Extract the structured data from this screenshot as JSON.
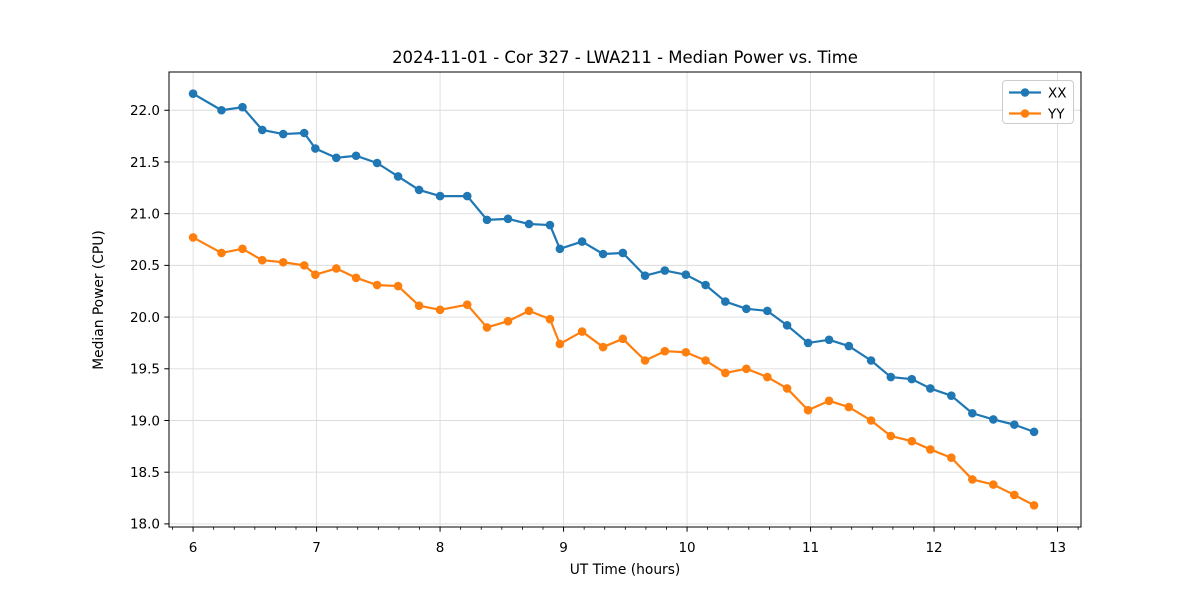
{
  "figure": {
    "background": "#ffffff"
  },
  "chart_data": {
    "type": "line",
    "title": "2024-11-01 - Cor 327 - LWA211 - Median Power vs. Time",
    "xlabel": "UT Time (hours)",
    "ylabel": "Median Power (CPU)",
    "legend_position": "upper right",
    "grid": true,
    "grid_color": "#dcdcdc",
    "axis_color": "#000000",
    "background": "#ffffff",
    "marker": "circle",
    "xlim": [
      5.805,
      13.19
    ],
    "ylim": [
      17.97,
      22.37
    ],
    "x_major_ticks": [
      6,
      7,
      8,
      9,
      10,
      11,
      12,
      13
    ],
    "x_minor_ticks_per_hour": 6,
    "y_ticks": [
      18.0,
      18.5,
      19.0,
      19.5,
      20.0,
      20.5,
      21.0,
      21.5,
      22.0
    ],
    "x": [
      6.0,
      6.23,
      6.4,
      6.56,
      6.73,
      6.9,
      6.99,
      7.16,
      7.32,
      7.49,
      7.66,
      7.83,
      8.0,
      8.22,
      8.38,
      8.55,
      8.72,
      8.89,
      8.97,
      9.15,
      9.32,
      9.48,
      9.66,
      9.82,
      9.99,
      10.15,
      10.31,
      10.48,
      10.65,
      10.81,
      10.98,
      11.15,
      11.31,
      11.49,
      11.65,
      11.82,
      11.97,
      12.14,
      12.31,
      12.48,
      12.65,
      12.81
    ],
    "series": [
      {
        "name": "XX",
        "color": "#1f77b4",
        "values": [
          22.16,
          22.0,
          22.03,
          21.81,
          21.77,
          21.78,
          21.63,
          21.54,
          21.56,
          21.49,
          21.36,
          21.23,
          21.17,
          21.17,
          20.94,
          20.95,
          20.9,
          20.89,
          20.66,
          20.73,
          20.61,
          20.62,
          20.4,
          20.45,
          20.41,
          20.31,
          20.15,
          20.08,
          20.06,
          19.92,
          19.75,
          19.78,
          19.72,
          19.58,
          19.42,
          19.4,
          19.31,
          19.24,
          19.07,
          19.01,
          18.96,
          18.89
        ]
      },
      {
        "name": "YY",
        "color": "#ff7f0e",
        "values": [
          20.77,
          20.62,
          20.66,
          20.55,
          20.53,
          20.5,
          20.41,
          20.47,
          20.38,
          20.31,
          20.3,
          20.11,
          20.07,
          20.12,
          19.9,
          19.96,
          20.06,
          19.98,
          19.74,
          19.86,
          19.71,
          19.79,
          19.58,
          19.67,
          19.66,
          19.58,
          19.46,
          19.5,
          19.42,
          19.31,
          19.1,
          19.19,
          19.13,
          19.0,
          18.85,
          18.8,
          18.72,
          18.64,
          18.43,
          18.38,
          18.28,
          18.18
        ]
      }
    ]
  }
}
